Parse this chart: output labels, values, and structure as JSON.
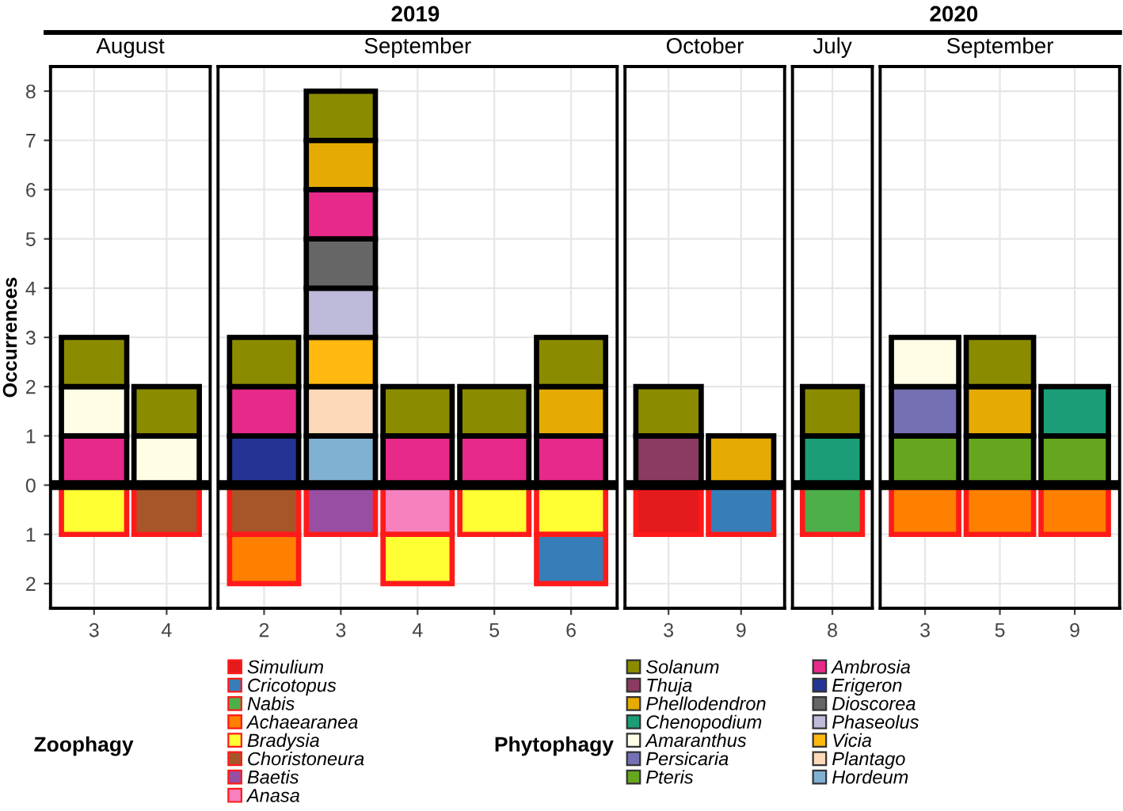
{
  "chart_data": [
    {
      "type": "bar",
      "stacked": true,
      "title": "August",
      "annotations": [
        "2019"
      ],
      "ylabel": "Occurrences",
      "legend_title": [
        "Zoophagy",
        "Phytophagy"
      ],
      "legend": "bottom",
      "grid": true,
      "categories": [
        "3",
        "4"
      ],
      "ylim": [
        -2.5,
        8.5
      ],
      "yticks": [
        {
          "value": -2,
          "label": "2"
        },
        {
          "value": -1,
          "label": "1"
        },
        0,
        1,
        2,
        3,
        4,
        5,
        6,
        7,
        8
      ],
      "ref_lines": [
        {
          "axis": "y",
          "value": 0,
          "color": "#000000"
        }
      ],
      "series": [
        {
          "name": "Anasa",
          "color": "#f781bf",
          "values": [
            null,
            null
          ]
        },
        {
          "name": "Baetis",
          "color": "#984ea3",
          "values": [
            null,
            null
          ]
        },
        {
          "name": "Choristoneura",
          "color": "#a65628",
          "values": [
            null,
            -1
          ]
        },
        {
          "name": "Bradysia",
          "color": "#ffff33",
          "values": [
            -1,
            null
          ]
        },
        {
          "name": "Achaearanea",
          "color": "#ff7f00",
          "values": [
            null,
            null
          ]
        },
        {
          "name": "Nabis",
          "color": "#4daf4a",
          "values": [
            null,
            null
          ]
        },
        {
          "name": "Cricotopus",
          "color": "#377eb8",
          "values": [
            null,
            null
          ]
        },
        {
          "name": "Simulium",
          "color": "#e41a1c",
          "values": [
            null,
            null
          ]
        },
        {
          "name": "Hordeum",
          "color": "#80b1d3",
          "values": [
            null,
            null
          ]
        },
        {
          "name": "Plantago",
          "color": "#fdd9b9",
          "values": [
            null,
            null
          ]
        },
        {
          "name": "Vicia",
          "color": "#ffb90f",
          "values": [
            null,
            null
          ]
        },
        {
          "name": "Phaseolus",
          "color": "#bebada",
          "values": [
            null,
            null
          ]
        },
        {
          "name": "Dioscorea",
          "color": "#666666",
          "values": [
            null,
            null
          ]
        },
        {
          "name": "Erigeron",
          "color": "#253494",
          "values": [
            null,
            null
          ]
        },
        {
          "name": "Ambrosia",
          "color": "#e7298a",
          "values": [
            1,
            null
          ]
        },
        {
          "name": "Pteris",
          "color": "#66a61e",
          "values": [
            null,
            null
          ]
        },
        {
          "name": "Persicaria",
          "color": "#7570b3",
          "values": [
            null,
            null
          ]
        },
        {
          "name": "Amaranthus",
          "color": "#fffde6",
          "values": [
            1,
            1
          ]
        },
        {
          "name": "Chenopodium",
          "color": "#1b9e77",
          "values": [
            null,
            null
          ]
        },
        {
          "name": "Phellodendron",
          "color": "#e6ab02",
          "values": [
            null,
            null
          ]
        },
        {
          "name": "Thuja",
          "color": "#8b3a62",
          "values": [
            null,
            null
          ]
        },
        {
          "name": "Solanum",
          "color": "#8b8b00",
          "values": [
            1,
            1
          ]
        }
      ]
    },
    {
      "type": "bar",
      "stacked": true,
      "title": "September",
      "grid": true,
      "tick_labels": "x",
      "categories": [
        "2",
        "3",
        "4",
        "5",
        "6"
      ],
      "ylim": [
        -2.5,
        8.5
      ],
      "yticks": [
        -2,
        -1,
        0,
        1,
        2,
        3,
        4,
        5,
        6,
        7,
        8
      ],
      "ref_lines": [
        {
          "axis": "y",
          "value": 0,
          "color": "#000000"
        }
      ],
      "series": [
        {
          "color": "#f781bf",
          "values": [
            null,
            null,
            -1,
            null,
            null
          ]
        },
        {
          "color": "#984ea3",
          "values": [
            null,
            -1,
            null,
            null,
            null
          ]
        },
        {
          "color": "#a65628",
          "values": [
            -1,
            null,
            null,
            null,
            null
          ]
        },
        {
          "color": "#ffff33",
          "values": [
            null,
            null,
            -1,
            -1,
            -1
          ]
        },
        {
          "color": "#ff7f00",
          "values": [
            -1,
            null,
            null,
            null,
            null
          ]
        },
        {
          "color": "#377eb8",
          "values": [
            null,
            null,
            null,
            null,
            -1
          ]
        },
        {
          "color": "#80b1d3",
          "values": [
            null,
            1,
            null,
            null,
            null
          ]
        },
        {
          "color": "#fdd9b9",
          "values": [
            null,
            1,
            null,
            null,
            null
          ]
        },
        {
          "color": "#ffb90f",
          "values": [
            null,
            1,
            null,
            null,
            null
          ]
        },
        {
          "color": "#bebada",
          "values": [
            null,
            1,
            null,
            null,
            null
          ]
        },
        {
          "color": "#666666",
          "values": [
            null,
            1,
            null,
            null,
            null
          ]
        },
        {
          "color": "#253494",
          "values": [
            1,
            null,
            null,
            null,
            null
          ]
        },
        {
          "color": "#e7298a",
          "values": [
            1,
            1,
            1,
            1,
            1
          ]
        },
        {
          "color": "#e6ab02",
          "values": [
            null,
            1,
            null,
            null,
            1
          ]
        },
        {
          "color": "#8b8b00",
          "values": [
            1,
            1,
            1,
            1,
            1
          ]
        }
      ]
    },
    {
      "type": "bar",
      "stacked": true,
      "title": "October",
      "grid": true,
      "tick_labels": "x",
      "categories": [
        "3",
        "9"
      ],
      "ylim": [
        -2.5,
        8.5
      ],
      "yticks": [
        -2,
        -1,
        0,
        1,
        2,
        3,
        4,
        5,
        6,
        7,
        8
      ],
      "ref_lines": [
        {
          "axis": "y",
          "value": 0,
          "color": "#000000"
        }
      ],
      "series": [
        {
          "color": "#377eb8",
          "values": [
            null,
            -1
          ]
        },
        {
          "color": "#e41a1c",
          "values": [
            -1,
            null
          ]
        },
        {
          "color": "#e6ab02",
          "values": [
            null,
            1
          ]
        },
        {
          "color": "#8b3a62",
          "values": [
            1,
            null
          ]
        },
        {
          "color": "#8b8b00",
          "values": [
            1,
            null
          ]
        }
      ]
    },
    {
      "type": "bar",
      "stacked": true,
      "title": "July",
      "annotations": [
        "2020"
      ],
      "grid": true,
      "tick_labels": "x",
      "categories": [
        "8"
      ],
      "ylim": [
        -2.5,
        8.5
      ],
      "yticks": [
        -2,
        -1,
        0,
        1,
        2,
        3,
        4,
        5,
        6,
        7,
        8
      ],
      "ref_lines": [
        {
          "axis": "y",
          "value": 0,
          "color": "#000000"
        }
      ],
      "series": [
        {
          "color": "#4daf4a",
          "values": [
            -1
          ]
        },
        {
          "color": "#1b9e77",
          "values": [
            1
          ]
        },
        {
          "color": "#8b8b00",
          "values": [
            1
          ]
        }
      ]
    },
    {
      "type": "bar",
      "stacked": true,
      "title": "September",
      "grid": true,
      "tick_labels": "x",
      "categories": [
        "3",
        "5",
        "9"
      ],
      "ylim": [
        -2.5,
        8.5
      ],
      "yticks": [
        -2,
        -1,
        0,
        1,
        2,
        3,
        4,
        5,
        6,
        7,
        8
      ],
      "ref_lines": [
        {
          "axis": "y",
          "value": 0,
          "color": "#000000"
        }
      ],
      "series": [
        {
          "color": "#ff7f00",
          "values": [
            -1,
            -1,
            -1
          ]
        },
        {
          "color": "#66a61e",
          "values": [
            1,
            1,
            1
          ]
        },
        {
          "color": "#7570b3",
          "values": [
            1,
            null,
            null
          ]
        },
        {
          "color": "#fffde6",
          "values": [
            1,
            null,
            null
          ]
        },
        {
          "color": "#1b9e77",
          "values": [
            null,
            null,
            1
          ]
        },
        {
          "color": "#e6ab02",
          "values": [
            null,
            1,
            null
          ]
        },
        {
          "color": "#8b8b00",
          "values": [
            null,
            1,
            null
          ]
        }
      ]
    }
  ]
}
